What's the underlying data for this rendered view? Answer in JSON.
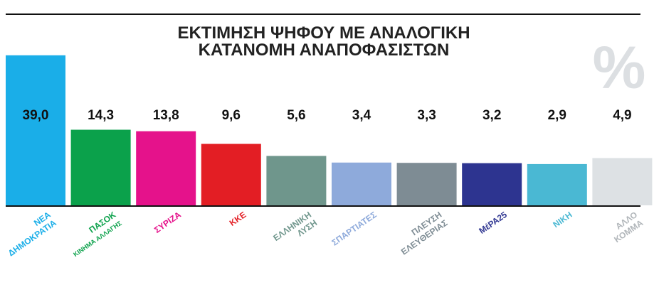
{
  "chart_data": {
    "type": "bar",
    "title": [
      "ΕΚΤΙΜΗΣΗ ΨΗΦΟΥ ΜΕ ΑΝΑΛΟΓΙΚΗ",
      "ΚΑΤΑΝΟΜΗ ΑΝΑΠΟΦΑΣΙΣΤΩΝ"
    ],
    "unit_symbol": "%",
    "categories": [
      [
        "ΝΕΑ",
        "ΔΗΜΟΚΡΑΤΙΑ"
      ],
      [
        "ΠΑΣΟΚ",
        "ΚΙΝΗΜΑ ΑΛΛΑΓΗΣ"
      ],
      [
        "ΣΥΡΙΖΑ"
      ],
      [
        "ΚΚΕ"
      ],
      [
        "ΕΛΛΗΝΙΚΗ",
        "ΛΥΣΗ"
      ],
      [
        "ΣΠΑΡΤΙΑΤΕΣ"
      ],
      [
        "ΠΛΕΥΣΗ",
        "ΕΛΕΥΘΕΡΙΑΣ"
      ],
      [
        "ΜέΡΑ25"
      ],
      [
        "ΝΙΚΗ"
      ],
      [
        "ΑΛΛΟ",
        "ΚΟΜΜΑ"
      ]
    ],
    "values": [
      39.0,
      14.3,
      13.8,
      9.6,
      5.6,
      3.4,
      3.3,
      3.2,
      2.9,
      4.9
    ],
    "value_labels": [
      "39,0",
      "14,3",
      "13,8",
      "9,6",
      "5,6",
      "3,4",
      "3,3",
      "3,2",
      "2,9",
      "4,9"
    ],
    "colors": [
      "#1aaee8",
      "#0ba14b",
      "#e5128b",
      "#e31e24",
      "#6f968c",
      "#8eaadb",
      "#7e8c94",
      "#2d3490",
      "#4ab8d3",
      "#dde1e4"
    ],
    "label_colors": [
      "#1aaee8",
      "#0ba14b",
      "#e5128b",
      "#e31e24",
      "#6f968c",
      "#8eaadb",
      "#7e8c94",
      "#2d3490",
      "#4ab8d3",
      "#b0b5b9"
    ],
    "ylim": [
      -10.8,
      40
    ]
  }
}
